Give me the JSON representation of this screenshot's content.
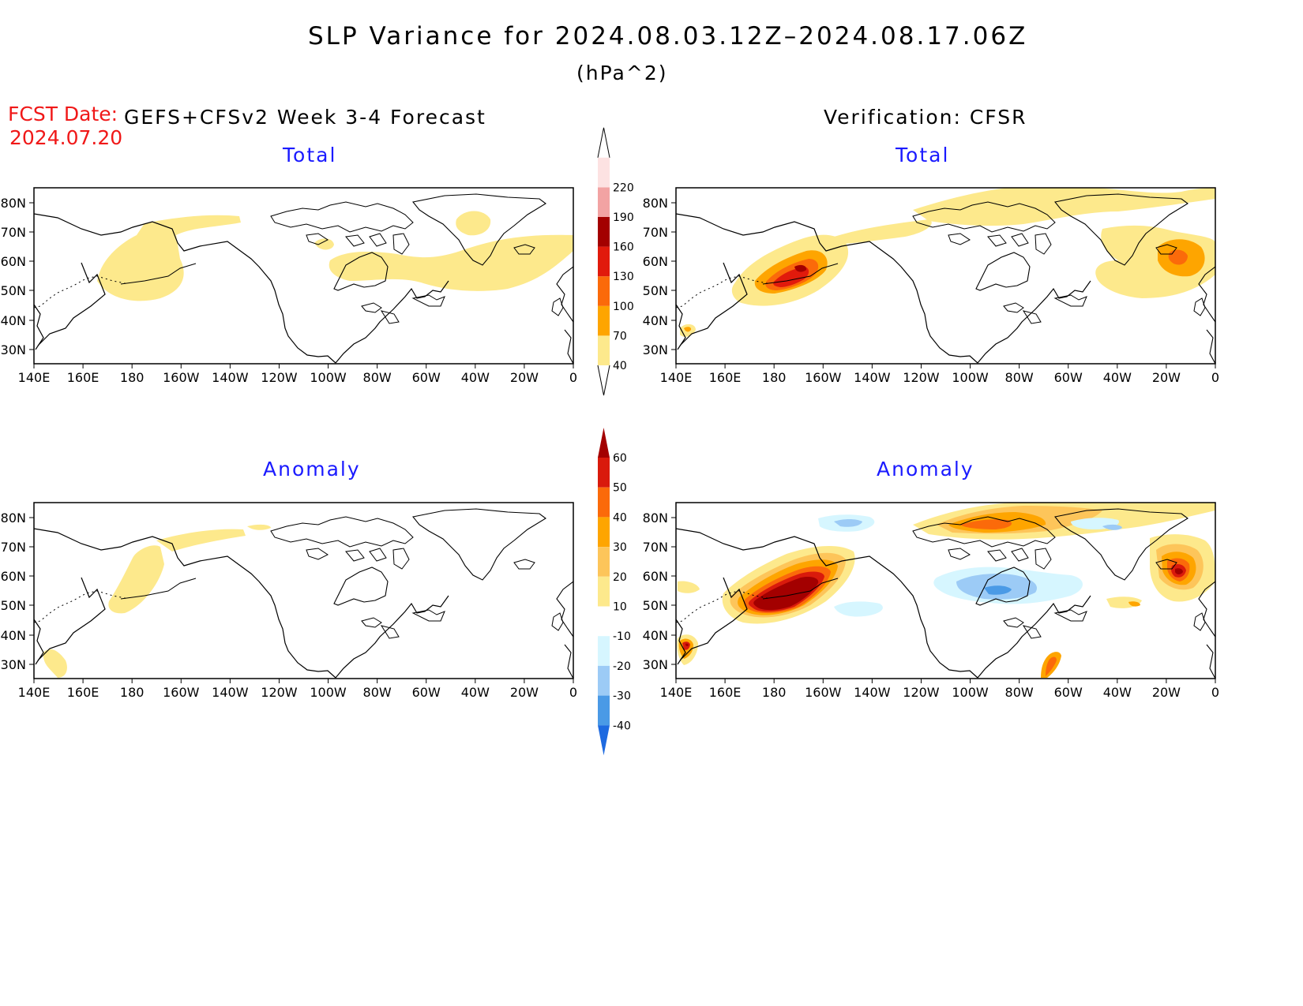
{
  "title": "SLP Variance for 2024.08.03.12Z–2024.08.17.06Z",
  "units": "(hPa^2)",
  "fcst_date": {
    "label": "FCST Date:",
    "value": "2024.07.20"
  },
  "left_header": "GEFS+CFSv2 Week 3-4 Forecast",
  "right_header": "Verification: CFSR",
  "panels": {
    "fc_total_title": "Total",
    "vf_total_title": "Total",
    "fc_anom_title": "Anomaly",
    "vf_anom_title": "Anomaly"
  },
  "lat_labels": [
    "80N",
    "70N",
    "60N",
    "50N",
    "40N",
    "30N"
  ],
  "lon_labels": [
    "140E",
    "160E",
    "180",
    "160W",
    "140W",
    "120W",
    "100W",
    "80W",
    "60W",
    "40W",
    "20W",
    "0"
  ],
  "colorbar_total": {
    "levels": [
      "40",
      "70",
      "100",
      "130",
      "160",
      "190",
      "220"
    ],
    "colors": [
      "#fde98c",
      "#fea500",
      "#fb6a0a",
      "#e11a0c",
      "#a30000",
      "#f2a3a3",
      "#fde2e2"
    ]
  },
  "colorbar_anom": {
    "levels": [
      "60",
      "50",
      "40",
      "30",
      "20",
      "10",
      "-10",
      "-20",
      "-30",
      "-40"
    ],
    "colors": [
      "#a30000",
      "#d91a0c",
      "#fb6a0a",
      "#fea500",
      "#fdc55a",
      "#fde98c",
      "#ffffff",
      "#d6f6ff",
      "#9ccbf6",
      "#4a9ae6",
      "#1e6ae0"
    ]
  }
}
